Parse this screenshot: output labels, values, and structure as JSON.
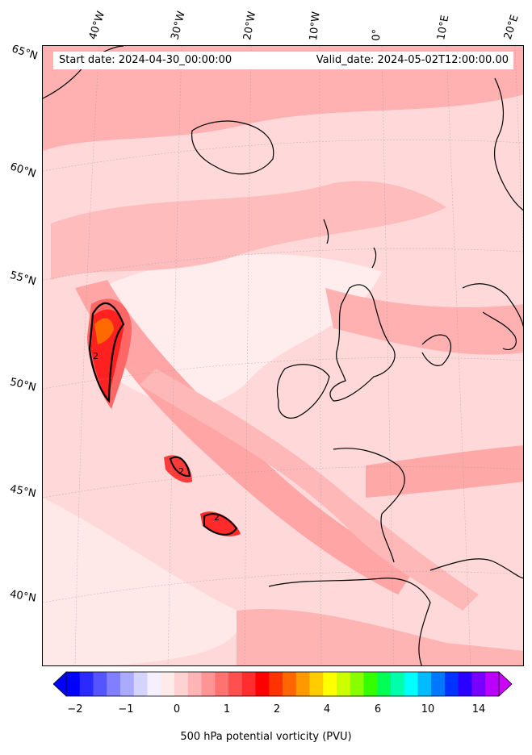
{
  "header": {
    "start_date": "Start date: 2024-04-30_00:00:00",
    "valid_date": "Valid_date: 2024-05-02T12:00:00.00"
  },
  "map": {
    "projection": "lambert-conformal",
    "region": "North Atlantic and Western Europe",
    "longitude_labels": [
      "40°W",
      "30°W",
      "20°W",
      "10°W",
      "0°",
      "10°E",
      "20°E"
    ],
    "latitude_labels": [
      "65°N",
      "60°N",
      "55°N",
      "50°N",
      "45°N",
      "40°N"
    ],
    "contour_level_label": "2",
    "field_colors": {
      "background": "#ffe0e0",
      "light": "#ffc8c8",
      "medium": "#ff9c9c",
      "strong": "#ff5a5a",
      "peak": "#ff1a1a",
      "extreme": "#ff6a00"
    }
  },
  "colorbar": {
    "label": "500 hPa potential vorticity (PVU)",
    "tick_labels": [
      "−2",
      "−1",
      "0",
      "1",
      "2",
      "4",
      "6",
      "10",
      "14"
    ],
    "colors": [
      "#0000ff",
      "#2a2aff",
      "#5555ff",
      "#7f7fff",
      "#aaaaff",
      "#d4d4ff",
      "#f5f0ff",
      "#ffeaea",
      "#ffd2d2",
      "#ffb5b5",
      "#ff9494",
      "#ff7272",
      "#ff5050",
      "#ff2d2d",
      "#ff0000",
      "#ff3300",
      "#ff6600",
      "#ff9900",
      "#ffcc00",
      "#ffff00",
      "#ccff00",
      "#88ff00",
      "#33ff00",
      "#00ff55",
      "#00ffaa",
      "#00ffff",
      "#00bbff",
      "#0077ff",
      "#0033ff",
      "#2a00ff",
      "#7700ff",
      "#bb00ff"
    ],
    "under_color": "#0000ff",
    "over_color": "#cc00ff"
  }
}
